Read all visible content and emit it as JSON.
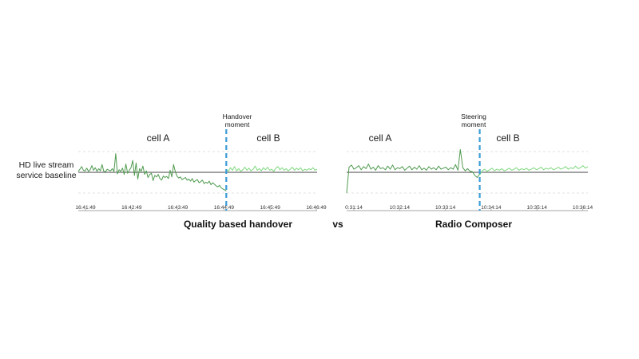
{
  "labels": {
    "baseline": [
      "HD live stream",
      "service baseline"
    ],
    "vs": "vs"
  },
  "colors": {
    "cellA": "#4f9a4f",
    "cellB": "#7ed87e",
    "divider": "#3a9bd5",
    "baseline": "#444444",
    "grid": "#d9d9d9",
    "axis": "#888888"
  },
  "chart_data": [
    {
      "type": "line",
      "title": "Quality based handover",
      "annotation": [
        "Handover",
        "moment"
      ],
      "regions": [
        "cell A",
        "cell B"
      ],
      "x_ticks": [
        "16:41:49",
        "16:42:49",
        "16:43:49",
        "16:44:49",
        "16:45:49",
        "16:46:49"
      ],
      "handover_at_tick_index": 3.05,
      "baseline_value": 0,
      "ylim": [
        -4,
        4
      ],
      "series": [
        {
          "values": [
            0.2,
            0.6,
            1.1,
            0.4,
            0.3,
            0.8,
            0.2,
            0.5,
            1.3,
            0.4,
            0.9,
            0.2,
            0.7,
            0.3,
            1.5,
            0.2,
            0.1,
            0.6,
            0.4,
            0.3,
            0.7,
            0.2,
            3.6,
            -0.3,
            0.5,
            0.2,
            0.8,
            -0.4,
            1.6,
            -0.2,
            0.4,
            0.9,
            2.3,
            -0.6,
            1.8,
            -1.3,
            0.7,
            0.2,
            1.2,
            -0.4,
            0.3,
            -1.0,
            -0.4,
            -0.2,
            -1.6,
            -0.6,
            -0.9,
            -0.4,
            -1.2,
            -1.5,
            -0.7,
            -1.0,
            -0.8,
            -1.2,
            0.4,
            -0.9,
            1.5,
            0.2,
            -0.7,
            -1.1,
            -0.9,
            -1.4,
            -1.2,
            -1.0,
            -1.5,
            -1.3,
            -1.7,
            -1.2,
            -1.9,
            -1.6,
            -1.4,
            -2.0,
            -1.8,
            -1.5,
            -2.2,
            -1.9,
            -2.1,
            -1.7,
            -2.4,
            -2.0,
            -2.3,
            -2.6,
            -2.8,
            -2.5,
            -3.0,
            -3.2,
            -3.4,
            -3.6
          ]
        },
        {
          "values": [
            0.6,
            0.2,
            0.9,
            0.4,
            1.1,
            0.3,
            0.7,
            0.2,
            0.5,
            1.0,
            0.4,
            0.8,
            0.3,
            0.6,
            1.2,
            0.4,
            0.7,
            0.3,
            0.9,
            0.5,
            1.0,
            0.4,
            0.6,
            0.2,
            0.8,
            1.1,
            0.5,
            0.9,
            0.4,
            0.7,
            0.3,
            0.6,
            1.0,
            0.4,
            0.8,
            0.5,
            0.9,
            0.3,
            0.6,
            0.4,
            0.7,
            0.5,
            0.9,
            0.4,
            0.6
          ]
        }
      ],
      "caption": "Quality based handover"
    },
    {
      "type": "line",
      "title": "Radio Composer",
      "annotation": [
        "Steering",
        "moment"
      ],
      "regions": [
        "cell A",
        "cell B"
      ],
      "x_ticks": [
        "0:31:14",
        "10:32:14",
        "10:33:14",
        "10:34:14",
        "10:35:14",
        "10:36:14"
      ],
      "handover_at_tick_index": 2.75,
      "baseline_value": 0,
      "ylim": [
        -4,
        4
      ],
      "series": [
        {
          "values": [
            -4.0,
            1.0,
            1.4,
            0.6,
            0.9,
            1.3,
            0.5,
            1.1,
            0.7,
            1.6,
            0.6,
            1.0,
            0.4,
            1.3,
            0.7,
            0.9,
            0.5,
            1.2,
            0.6,
            1.4,
            0.5,
            0.9,
            0.7,
            1.1,
            0.4,
            0.8,
            1.2,
            0.5,
            1.0,
            0.6,
            1.3,
            0.5,
            0.8,
            0.4,
            1.1,
            0.6,
            0.9,
            0.5,
            1.2,
            0.6,
            0.8,
            1.0,
            0.5,
            0.9,
            0.6,
            1.5,
            0.4,
            4.4,
            0.9,
            0.3,
            0.7,
            0.2,
            0.1,
            -0.6,
            -1.0,
            -0.3
          ]
        },
        {
          "values": [
            -0.5,
            0.3,
            0.6,
            0.2,
            0.5,
            0.8,
            0.3,
            0.6,
            0.4,
            0.7,
            0.3,
            0.5,
            0.8,
            0.4,
            0.6,
            0.9,
            0.4,
            0.7,
            0.5,
            0.8,
            0.4,
            0.6,
            0.9,
            0.5,
            0.7,
            1.0,
            0.5,
            0.8,
            0.6,
            0.9,
            0.5,
            0.7,
            1.0,
            0.6,
            0.8,
            1.1,
            0.6,
            0.9,
            0.7,
            1.2,
            0.7,
            0.9,
            1.3,
            0.8,
            1.1
          ]
        }
      ],
      "caption": "Radio Composer"
    }
  ]
}
